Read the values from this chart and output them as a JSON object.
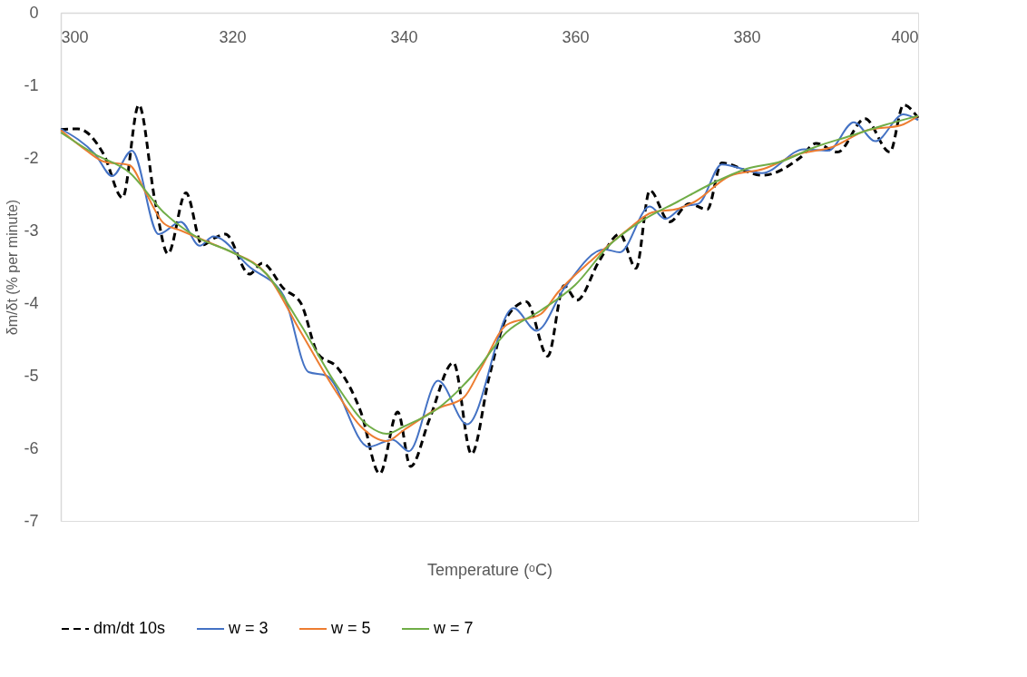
{
  "chart_data": {
    "type": "line",
    "xlabel": "Temperature (ᵒC)",
    "ylabel": "δm/δt (% per minute)",
    "xlim": [
      300,
      400
    ],
    "ylim": [
      -7,
      0
    ],
    "xticks": [
      300,
      320,
      340,
      360,
      380,
      400
    ],
    "yticks": [
      0,
      -1,
      -2,
      -3,
      -4,
      -5,
      -6,
      -7
    ],
    "grid": false,
    "legend": "bottom",
    "series": [
      {
        "name": "dm/dt 10s",
        "color": "#000000",
        "line_style": "dashed",
        "x": [
          300,
          302,
          305,
          307.2,
          309.1,
          311,
          312.5,
          314.6,
          316.5,
          318,
          319.2,
          322,
          323.5,
          326,
          328,
          330,
          332.2,
          335,
          337.2,
          339.3,
          340.8,
          343,
          345.8,
          347.9,
          350,
          352,
          354.3,
          356.8,
          358.7,
          360.2,
          362.8,
          365.2,
          367.1,
          368.7,
          371,
          373.3,
          375.4,
          377.1,
          381.8,
          386.3,
          388.1,
          390.6,
          393.8,
          396.7,
          398.3,
          400
        ],
        "values": [
          -1.61,
          -1.6,
          -1.95,
          -2.55,
          -1.27,
          -2.6,
          -3.32,
          -2.48,
          -3.2,
          -3.1,
          -3.05,
          -3.6,
          -3.45,
          -3.8,
          -4.0,
          -4.7,
          -4.88,
          -5.5,
          -6.35,
          -5.5,
          -6.25,
          -5.6,
          -4.82,
          -6.08,
          -5.0,
          -4.2,
          -3.98,
          -4.73,
          -3.76,
          -3.96,
          -3.42,
          -3.05,
          -3.52,
          -2.45,
          -2.88,
          -2.63,
          -2.71,
          -2.07,
          -2.24,
          -1.99,
          -1.8,
          -1.92,
          -1.46,
          -1.92,
          -1.27,
          -1.45
        ]
      },
      {
        "name": "w = 3",
        "color": "#4472c4",
        "line_style": "solid",
        "x": [
          300,
          304,
          306,
          308.3,
          311.4,
          314,
          316.2,
          317.8,
          322,
          326,
          328.9,
          331,
          335.9,
          338.7,
          340.6,
          344,
          347.4,
          352.8,
          355.5,
          358.7,
          363.4,
          365.2,
          368.7,
          370.5,
          372.6,
          374.4,
          377.1,
          381.8,
          386.7,
          389.5,
          392.5,
          395,
          398.3,
          400
        ],
        "values": [
          -1.6,
          -1.95,
          -2.25,
          -1.9,
          -3.05,
          -2.88,
          -3.21,
          -3.08,
          -3.5,
          -3.9,
          -4.95,
          -5.0,
          -5.98,
          -5.88,
          -6.04,
          -5.07,
          -5.67,
          -4.07,
          -4.38,
          -3.8,
          -3.26,
          -3.3,
          -2.67,
          -2.84,
          -2.67,
          -2.63,
          -2.09,
          -2.21,
          -1.88,
          -1.9,
          -1.51,
          -1.77,
          -1.4,
          -1.48
        ]
      },
      {
        "name": "w = 5",
        "color": "#ed7d31",
        "line_style": "solid",
        "x": [
          300,
          303,
          305,
          308,
          310,
          312,
          314,
          316,
          318,
          320,
          324,
          328,
          332,
          335,
          338,
          340,
          344,
          347,
          349,
          352,
          356,
          358,
          362,
          366,
          369,
          372,
          374,
          378,
          382,
          386,
          390,
          394,
          398,
          400
        ],
        "values": [
          -1.62,
          -1.9,
          -2.05,
          -2.1,
          -2.5,
          -2.9,
          -3.0,
          -3.1,
          -3.2,
          -3.3,
          -3.6,
          -4.4,
          -5.2,
          -5.7,
          -5.9,
          -5.75,
          -5.45,
          -5.3,
          -4.9,
          -4.3,
          -4.15,
          -3.85,
          -3.4,
          -3.0,
          -2.75,
          -2.7,
          -2.6,
          -2.25,
          -2.15,
          -1.95,
          -1.85,
          -1.62,
          -1.55,
          -1.42
        ]
      },
      {
        "name": "w = 7",
        "color": "#70ad47",
        "line_style": "solid",
        "x": [
          300,
          304,
          308,
          312,
          316,
          320,
          324,
          328,
          332,
          336,
          338,
          340,
          344,
          348,
          352,
          356,
          360,
          364,
          368,
          372,
          376,
          380,
          384,
          388,
          392,
          396,
          400
        ],
        "values": [
          -1.65,
          -1.95,
          -2.2,
          -2.75,
          -3.1,
          -3.3,
          -3.6,
          -4.3,
          -5.1,
          -5.7,
          -5.8,
          -5.7,
          -5.45,
          -5.0,
          -4.4,
          -4.1,
          -3.75,
          -3.2,
          -2.85,
          -2.6,
          -2.35,
          -2.15,
          -2.05,
          -1.85,
          -1.7,
          -1.55,
          -1.42
        ]
      }
    ]
  }
}
